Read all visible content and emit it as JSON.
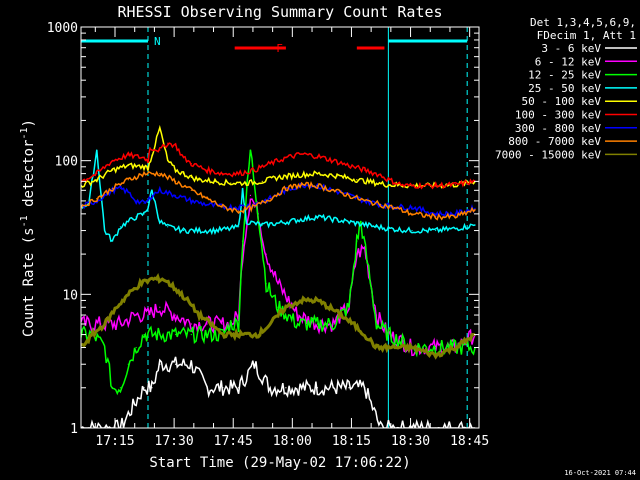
{
  "chart_data": {
    "type": "line",
    "title": "RHESSI Observing Summary Count Rates",
    "xlabel": "Start Time (29-May-02 17:06:22)",
    "ylabel_main": "Count Rate (s",
    "ylabel_sup1": "-1",
    "ylabel_mid": " detector",
    "ylabel_sup2": "-1",
    "ylabel_end": ")",
    "yscale": "log",
    "ylim": [
      1,
      1000
    ],
    "xlim_minutes": [
      0,
      101
    ],
    "x_tick_labels": [
      "17:15",
      "17:30",
      "17:45",
      "18:00",
      "18:15",
      "18:30",
      "18:45"
    ],
    "x_tick_minutes": [
      8.63,
      23.63,
      38.63,
      53.63,
      68.63,
      83.63,
      98.63
    ],
    "y_tick_labels": [
      "1",
      "10",
      "100",
      "1000"
    ],
    "y_tick_values": [
      1,
      10,
      100,
      1000
    ],
    "legend_header": [
      "Det 1,3,4,5,6,9,",
      "FDecim 1, Att 1"
    ],
    "legend_position": "right",
    "timestamp": "16-Oct-2021 07:44",
    "flags": [
      {
        "label": "N",
        "color": "#00ffff",
        "segments": [
          [
            0,
            17
          ],
          [
            78,
            98
          ]
        ]
      },
      {
        "label": "F",
        "color": "#ff0000",
        "segments": [
          [
            39,
            52
          ],
          [
            70,
            77
          ]
        ]
      }
    ],
    "marker_lines_minutes": [
      17,
      78,
      98
    ],
    "solid_marker_minutes": [
      78
    ],
    "series": [
      {
        "name": "3 - 6 keV",
        "color": "#ffffff",
        "x": [
          0,
          10,
          16,
          18,
          20,
          24,
          28,
          32,
          36,
          40,
          44,
          48,
          52,
          56,
          60,
          64,
          68,
          72,
          76,
          80,
          84,
          90,
          95,
          100
        ],
        "y": [
          1,
          1,
          2,
          2,
          3,
          3,
          3,
          2,
          2,
          2,
          3,
          2,
          2,
          2,
          2,
          2,
          2,
          2,
          1,
          1,
          1,
          1,
          1,
          1
        ]
      },
      {
        "name": "6 - 12 keV",
        "color": "#ff00ff",
        "x": [
          0,
          5,
          10,
          14,
          17,
          20,
          24,
          28,
          32,
          36,
          38,
          40,
          41,
          43,
          45,
          47,
          50,
          55,
          60,
          64,
          66,
          68,
          70,
          72,
          73,
          75,
          78,
          84,
          90,
          95,
          100
        ],
        "y": [
          6,
          6,
          6,
          7,
          7,
          8,
          7,
          6,
          6,
          6,
          6,
          7,
          20,
          55,
          40,
          20,
          12,
          7,
          6,
          6,
          7,
          8,
          20,
          22,
          15,
          7,
          5,
          4,
          4,
          4,
          5
        ]
      },
      {
        "name": "12 - 25 keV",
        "color": "#00ff00",
        "x": [
          0,
          3,
          6,
          8,
          10,
          12,
          14,
          16,
          17,
          20,
          24,
          28,
          32,
          36,
          38,
          40,
          41,
          43,
          45,
          47,
          50,
          55,
          60,
          64,
          66,
          68,
          70,
          71,
          73,
          75,
          78,
          84,
          90,
          95,
          100
        ],
        "y": [
          5,
          5,
          4,
          2,
          2,
          3,
          4,
          5,
          5,
          5,
          5,
          5,
          5,
          5,
          6,
          6,
          25,
          120,
          40,
          12,
          8,
          6,
          6,
          6,
          7,
          8,
          25,
          35,
          15,
          6,
          5,
          4,
          4,
          4,
          4
        ]
      },
      {
        "name": "25 - 50 keV",
        "color": "#00ffff",
        "x": [
          0,
          2,
          4,
          6,
          8,
          10,
          12,
          14,
          16,
          17,
          18,
          20,
          22,
          26,
          30,
          34,
          38,
          40,
          41,
          42,
          46,
          50,
          55,
          60,
          65,
          70,
          75,
          78,
          84,
          90,
          95,
          100
        ],
        "y": [
          45,
          48,
          120,
          30,
          25,
          32,
          35,
          38,
          40,
          45,
          60,
          35,
          32,
          30,
          30,
          30,
          31,
          32,
          60,
          35,
          33,
          34,
          36,
          38,
          36,
          34,
          32,
          31,
          30,
          30,
          31,
          33
        ]
      },
      {
        "name": "50 - 100 keV",
        "color": "#ffff00",
        "x": [
          0,
          4,
          8,
          12,
          16,
          17,
          18,
          20,
          22,
          24,
          26,
          28,
          30,
          34,
          38,
          42,
          46,
          50,
          55,
          60,
          65,
          70,
          75,
          78,
          84,
          90,
          95,
          100
        ],
        "y": [
          65,
          72,
          85,
          92,
          90,
          88,
          110,
          175,
          100,
          85,
          80,
          75,
          72,
          70,
          68,
          68,
          70,
          75,
          78,
          80,
          77,
          72,
          68,
          66,
          65,
          65,
          66,
          70
        ]
      },
      {
        "name": "100 - 300 keV",
        "color": "#ff0000",
        "x": [
          0,
          4,
          8,
          12,
          16,
          17,
          17.5,
          20,
          22,
          24,
          26,
          28,
          32,
          36,
          40,
          44,
          48,
          52,
          56,
          60,
          64,
          68,
          72,
          76,
          78,
          82,
          86,
          90,
          95,
          100
        ],
        "y": [
          70,
          80,
          100,
          110,
          105,
          100,
          125,
          120,
          135,
          130,
          105,
          95,
          85,
          80,
          80,
          85,
          95,
          105,
          112,
          108,
          100,
          92,
          85,
          78,
          72,
          65,
          65,
          65,
          66,
          70
        ]
      },
      {
        "name": "300 - 800 keV",
        "color": "#0000ff",
        "x": [
          0,
          4,
          8,
          10,
          12,
          14,
          16,
          17,
          18,
          20,
          24,
          28,
          32,
          36,
          40,
          44,
          48,
          52,
          56,
          60,
          64,
          68,
          72,
          76,
          80,
          84,
          90,
          95,
          100
        ],
        "y": [
          45,
          50,
          60,
          62,
          58,
          50,
          48,
          50,
          55,
          60,
          55,
          50,
          47,
          45,
          45,
          47,
          52,
          60,
          66,
          65,
          60,
          55,
          50,
          47,
          45,
          45,
          40,
          40,
          44
        ]
      },
      {
        "name": "800 - 7000 keV",
        "color": "#ff8000",
        "x": [
          0,
          4,
          8,
          12,
          16,
          20,
          24,
          28,
          32,
          36,
          40,
          44,
          48,
          52,
          56,
          60,
          64,
          68,
          72,
          76,
          80,
          84,
          90,
          95,
          100
        ],
        "y": [
          45,
          52,
          62,
          72,
          80,
          80,
          70,
          60,
          52,
          45,
          42,
          45,
          52,
          62,
          66,
          65,
          60,
          55,
          50,
          47,
          44,
          40,
          38,
          38,
          43
        ]
      },
      {
        "name": "7000 - 15000 keV",
        "color": "#808000",
        "x": [
          0,
          3,
          6,
          9,
          12,
          15,
          18,
          21,
          24,
          27,
          30,
          33,
          36,
          39,
          42,
          45,
          48,
          52,
          56,
          60,
          63,
          66,
          69,
          72,
          75,
          78,
          84,
          90,
          95,
          100
        ],
        "y": [
          4,
          5,
          6,
          8,
          10,
          12,
          13,
          13,
          11,
          9,
          7,
          6,
          5,
          5,
          5,
          5,
          6,
          8,
          9,
          9,
          8,
          7,
          6,
          5,
          4,
          4,
          4,
          3.5,
          4,
          5
        ]
      }
    ]
  }
}
